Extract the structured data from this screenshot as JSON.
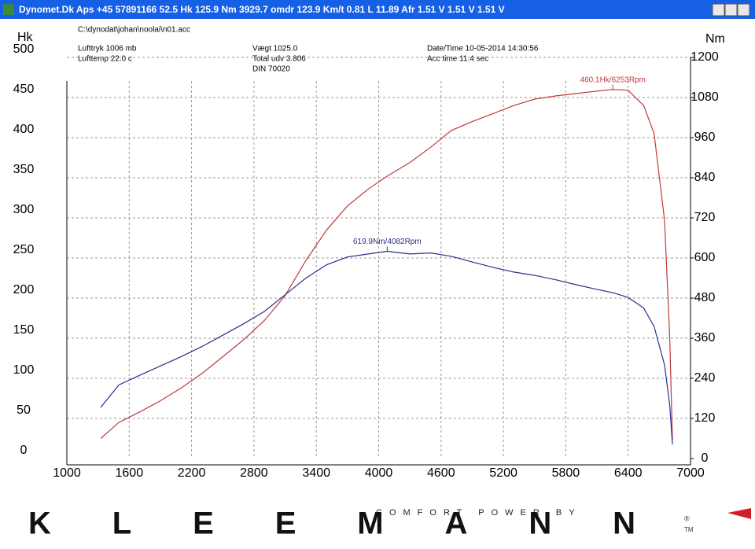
{
  "window_title": "Dynomet.Dk Aps +45 57891166  52.5 Hk 125.9 Nm 3929.7 omdr 123.9 Km/t   0.81 L 11.89 Afr 1.51 V 1.51 V 1.51 V",
  "file_info": {
    "file": "C:\\dynodat\\johan\\noolai\\n01.acc",
    "pressure": "Lufttryk  1006 mb",
    "temperature": "Lufttemp  22.0 c",
    "weight": "Vægt    1025.0",
    "ratio": "Total udv 3.806",
    "standard": "DIN 70020",
    "datetime": "Date/Time  10-05-2014 14:30:56",
    "acc_time": "Acc time  11.4 sec"
  },
  "footer": {
    "tagline": "COMFORT POWER BY",
    "brand": "KLEEMANN",
    "registered": "®",
    "trademark": "TM"
  },
  "chart_data": {
    "type": "line",
    "ylabel": "Hk",
    "y2label": "Nm",
    "grid": true,
    "x": [
      1325,
      1500,
      1700,
      1900,
      2100,
      2300,
      2500,
      2700,
      2900,
      3100,
      3300,
      3500,
      3700,
      3900,
      4082,
      4300,
      4500,
      4700,
      4900,
      5100,
      5300,
      5500,
      5700,
      5900,
      6100,
      6253,
      6400,
      6550,
      6650,
      6750,
      6800,
      6826
    ],
    "xlim": [
      1000,
      7000
    ],
    "xticks": [
      1000,
      1600,
      2200,
      2800,
      3400,
      4000,
      4600,
      5200,
      5800,
      6400,
      7000
    ],
    "ylim": [
      0,
      500
    ],
    "yticks": [
      0,
      50,
      100,
      150,
      200,
      250,
      300,
      350,
      400,
      450,
      500
    ],
    "y2lim": [
      0,
      1200
    ],
    "y2ticks": [
      0,
      120,
      240,
      360,
      480,
      600,
      720,
      840,
      960,
      1080,
      1200
    ],
    "series": [
      {
        "name": "Hk",
        "color": "#c0393b",
        "values": [
          25,
          45,
          58,
          72,
          88,
          106,
          127,
          148,
          172,
          203,
          247,
          285,
          315,
          336,
          352,
          369,
          388,
          409,
          420,
          430,
          440,
          448,
          452,
          455,
          458,
          460.1,
          459,
          440,
          405,
          297,
          150,
          23
        ]
      },
      {
        "name": "Nm",
        "color": "#2a2f8f",
        "axis": "y2",
        "values": [
          153,
          220,
          249,
          277,
          305,
          335,
          369,
          403,
          440,
          490,
          540,
          580,
          603,
          612,
          619.9,
          612,
          615,
          605,
          588,
          572,
          558,
          548,
          535,
          520,
          506,
          496,
          482,
          450,
          395,
          280,
          160,
          42
        ]
      }
    ],
    "annotations": [
      {
        "text": "460.1Hk/6253Rpm",
        "series": 0,
        "index": 25
      },
      {
        "text": "619.9Nm/4082Rpm",
        "series": 1,
        "index": 14
      }
    ]
  }
}
